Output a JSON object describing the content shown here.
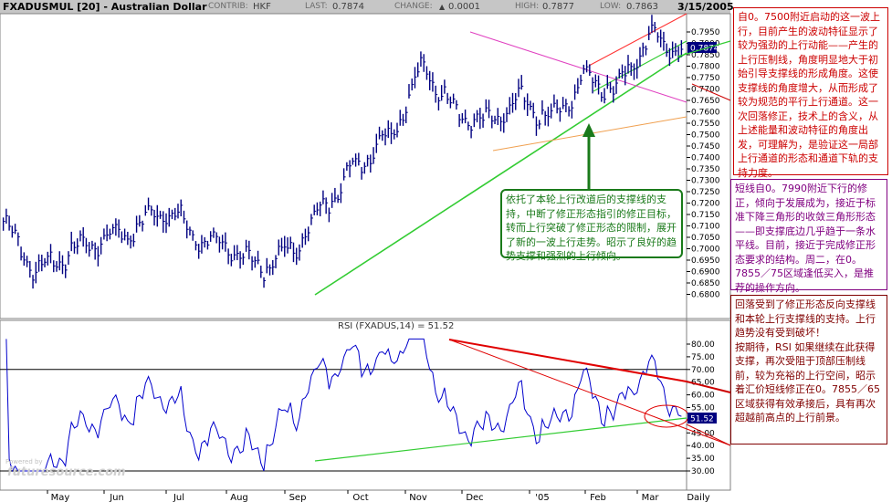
{
  "header": {
    "symbol": "FXADUSMUL [20] - Australian Dollar",
    "contrib_label": "CONTRIB:",
    "contrib": "HKF",
    "last_label": "LAST:",
    "last": "0.7874",
    "change_label": "CHANGE:",
    "change_arrow": "▲",
    "change": "0.0001",
    "high_label": "HIGH:",
    "high": "0.7877",
    "low_label": "LOW:",
    "low": "0.7863",
    "date": "3/15/2005"
  },
  "colors": {
    "price": "#000080",
    "support_line": "#33cc33",
    "upper_channel": "#ff3333",
    "pink_line": "#e040c0",
    "orange_line": "#f0a050",
    "rsi_line": "#0000cc",
    "current_box": "#000080"
  },
  "rsi_title": "RSI (FXADUS,14) = 51.52",
  "watermark": "futuresource.com",
  "watermark_small": "Powered by",
  "current_price_tag": "0.7874",
  "current_rsi_tag": "51.52",
  "notes": {
    "red": "自0。7500附近启动的这一波上行，目前产生的波动特征显示了较为强劲的上行动能——产生的上行压制线，角度明显地大于初始引导支撑线的形成角度。这使支撑线的角度增大，从而形成了较为规范的平行上行通道。这一次回落修正，技术上的含义，从上述能量和波动特征的角度出发，可理解为，是验证这一局部上行通道的形态和通道下轨的支持力度。",
    "purple": "短线自0。7990附近下行的修正，倾向于发展成为，接近于标准下降三角形的收敛三角形形态——即支撑底边几乎趋于一条水平线。目前，接近于完成修正形态要求的结构。周二，在0。7855／75区域逢低买入，是推荐的操作方向。",
    "brown": "回落受到了修正形态反向支撑线和本轮上行支撑线的支持。上行趋势没有受到破坏！\n按期待，RSI 如果继续在此获得支撑，再次受阻于顶部压制线前，较为充裕的上行空间，昭示着汇价短线修正在0。7855／65区域获得有效承接后，具有再次超越前高点的上行前景。",
    "green": "依托了本轮上行改道后的支撑线的支持，中断了修正形态指引的修正目标，转而上行突破了修正形态的限制，展开了新的一波上行走势。昭示了良好的趋势支撑和强烈的上行倾向。"
  },
  "chart_data": [
    {
      "type": "candlestick",
      "title": "FXADUSMUL [20] - Australian Dollar",
      "x_tick_labels": [
        "May",
        "Jun",
        "Jul",
        "Aug",
        "Sep",
        "Oct",
        "Nov",
        "Dec",
        "'05",
        "Feb",
        "Mar",
        "Daily"
      ],
      "y_tick_labels": [
        "0.7950",
        "0.7900",
        "0.7850",
        "0.7800",
        "0.7750",
        "0.7700",
        "0.7650",
        "0.7600",
        "0.7550",
        "0.7500",
        "0.7450",
        "0.7400",
        "0.7350",
        "0.7300",
        "0.7250",
        "0.7200",
        "0.7150",
        "0.7100",
        "0.7050",
        "0.7000",
        "0.6950",
        "0.6900",
        "0.6850",
        "0.6800"
      ],
      "ylim": [
        0.678,
        0.799
      ],
      "grid": false,
      "approx_daily_close_path": [
        {
          "month": "May",
          "value": 0.712
        },
        {
          "month": "May-mid",
          "value": 0.69
        },
        {
          "month": "Jun",
          "value": 0.698
        },
        {
          "month": "Jun-mid",
          "value": 0.704
        },
        {
          "month": "Jul",
          "value": 0.708
        },
        {
          "month": "Jul-mid",
          "value": 0.718
        },
        {
          "month": "Aug",
          "value": 0.705
        },
        {
          "month": "Aug-mid",
          "value": 0.7
        },
        {
          "month": "Sep",
          "value": 0.692
        },
        {
          "month": "Sep-mid",
          "value": 0.7
        },
        {
          "month": "Oct",
          "value": 0.72
        },
        {
          "month": "Oct-mid",
          "value": 0.738
        },
        {
          "month": "Nov",
          "value": 0.75
        },
        {
          "month": "Nov-mid",
          "value": 0.78
        },
        {
          "month": "Dec",
          "value": 0.76
        },
        {
          "month": "Dec-mid",
          "value": 0.755
        },
        {
          "month": "'05",
          "value": 0.765
        },
        {
          "month": "'05-mid",
          "value": 0.756
        },
        {
          "month": "Feb",
          "value": 0.775
        },
        {
          "month": "Feb-mid",
          "value": 0.77
        },
        {
          "month": "Mar",
          "value": 0.793
        },
        {
          "month": "Mar-mid",
          "value": 0.7874
        }
      ],
      "last": 0.7874
    },
    {
      "type": "line",
      "title": "RSI (FXADUS,14) = 51.52",
      "y_tick_labels": [
        "80.00",
        "75.00",
        "70.00",
        "65.00",
        "60.00",
        "55.00",
        "50.00",
        "45.00",
        "40.00",
        "35.00",
        "30.00"
      ],
      "ylim": [
        28,
        84
      ],
      "reference_lines": [
        70,
        30
      ],
      "last": 51.52
    }
  ]
}
